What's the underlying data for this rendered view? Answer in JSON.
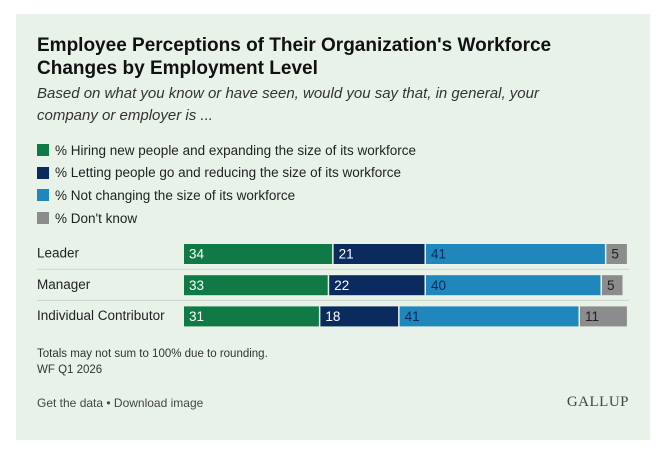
{
  "chart_data": {
    "type": "bar",
    "orientation": "horizontal",
    "stacked": true,
    "title": "Employee Perceptions of Their Organization's Workforce Changes by Employment Level",
    "subtitle": "Based on what you know or have seen, would you say that, in general, your company or employer is ...",
    "categories": [
      "Leader",
      "Manager",
      "Individual Contributor"
    ],
    "series": [
      {
        "name": "% Hiring new people and expanding the size of its workforce",
        "color": "#0f7a45",
        "values": [
          34,
          33,
          31
        ]
      },
      {
        "name": "% Letting people go and reducing the size of its workforce",
        "color": "#0b2a5e",
        "values": [
          21,
          22,
          18
        ]
      },
      {
        "name": "% Not changing the size of its workforce",
        "color": "#2087bd",
        "values": [
          41,
          40,
          41
        ]
      },
      {
        "name": "% Don't know",
        "color": "#8c8c8c",
        "values": [
          5,
          5,
          11
        ]
      }
    ],
    "notes": [
      "Totals may not sum to 100% due to rounding.",
      "WF Q1 2026"
    ],
    "footer": {
      "links": "Get the data • Download image",
      "brand": "GALLUP"
    }
  }
}
